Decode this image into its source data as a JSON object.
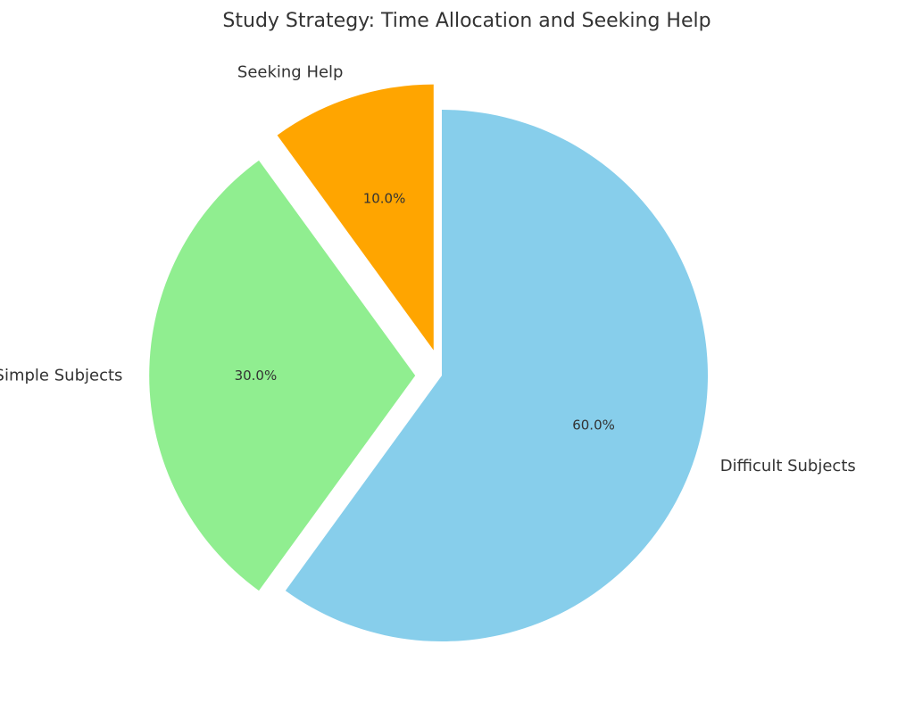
{
  "chart_data": {
    "type": "pie",
    "title": "Study Strategy: Time Allocation and Seeking Help",
    "start_angle_deg": 90,
    "direction": "clockwise",
    "slices": [
      {
        "label": "Difficult Subjects",
        "value": 60.0,
        "pct_label": "60.0%",
        "color": "#87CEEB",
        "exploded": false
      },
      {
        "label": "Simple Subjects",
        "value": 30.0,
        "pct_label": "30.0%",
        "color": "#90EE90",
        "exploded": true
      },
      {
        "label": "Seeking Help",
        "value": 10.0,
        "pct_label": "10.0%",
        "color": "#FFA500",
        "exploded": true
      }
    ]
  }
}
